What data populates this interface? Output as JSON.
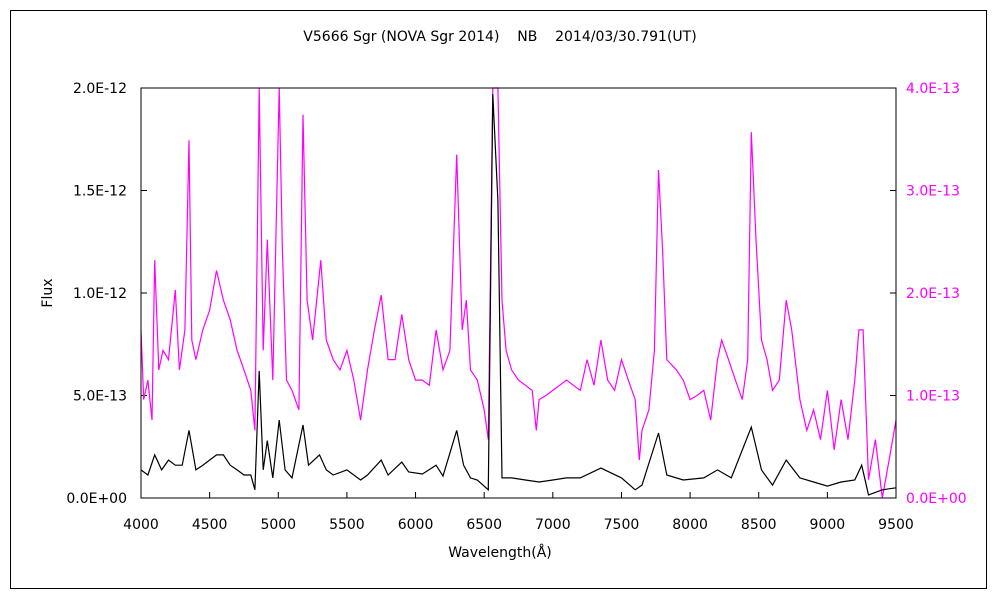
{
  "chart_data": {
    "type": "line",
    "title": "V5666 Sgr (NOVA Sgr 2014)    NB    2014/03/30.791(UT)",
    "xlabel": "Wavelength(Å)",
    "ylabel": "Flux",
    "xlim": [
      4000,
      9500
    ],
    "ylim_left": [
      0,
      2e-12
    ],
    "ylim_right": [
      0,
      4e-13
    ],
    "x_ticks": [
      "4000",
      "4500",
      "5000",
      "5500",
      "6000",
      "6500",
      "7000",
      "7500",
      "8000",
      "8500",
      "9000",
      "9500"
    ],
    "y_ticks_left": [
      "0.0E+00",
      "5.0E-13",
      "1.0E-12",
      "1.5E-12",
      "2.0E-12"
    ],
    "y_ticks_right": [
      "0.0E+00",
      "1.0E-13",
      "2.0E-13",
      "3.0E-13",
      "4.0E-13"
    ],
    "grid": false,
    "colors": {
      "left_series": "#000000",
      "right_series": "#ff00ff",
      "right_axis_labels": "#ff00ff"
    },
    "series": [
      {
        "axis": "left",
        "color": "#000000",
        "points": [
          [
            4000,
            1.37e-13
          ],
          [
            4050,
            1.12e-13
          ],
          [
            4100,
            2.1e-13
          ],
          [
            4150,
            1.37e-13
          ],
          [
            4200,
            1.85e-13
          ],
          [
            4250,
            1.6e-13
          ],
          [
            4300,
            1.6e-13
          ],
          [
            4350,
            3.3e-13
          ],
          [
            4400,
            1.37e-13
          ],
          [
            4450,
            1.6e-13
          ],
          [
            4500,
            1.85e-13
          ],
          [
            4550,
            2.1e-13
          ],
          [
            4600,
            2.1e-13
          ],
          [
            4650,
            1.6e-13
          ],
          [
            4700,
            1.37e-13
          ],
          [
            4750,
            1.12e-13
          ],
          [
            4800,
            1.12e-13
          ],
          [
            4830,
            4e-14
          ],
          [
            4861,
            6.2e-13
          ],
          [
            4890,
            1.37e-13
          ],
          [
            4920,
            2.8e-13
          ],
          [
            4960,
            9.8e-14
          ],
          [
            5007,
            3.8e-13
          ],
          [
            5050,
            1.37e-13
          ],
          [
            5100,
            9.8e-14
          ],
          [
            5180,
            3.56e-13
          ],
          [
            5220,
            1.6e-13
          ],
          [
            5300,
            2.1e-13
          ],
          [
            5350,
            1.37e-13
          ],
          [
            5400,
            1.12e-13
          ],
          [
            5500,
            1.37e-13
          ],
          [
            5600,
            8.8e-14
          ],
          [
            5650,
            1.12e-13
          ],
          [
            5750,
            1.85e-13
          ],
          [
            5800,
            1.12e-13
          ],
          [
            5900,
            1.75e-13
          ],
          [
            5950,
            1.27e-13
          ],
          [
            6050,
            1.17e-13
          ],
          [
            6150,
            1.6e-13
          ],
          [
            6200,
            1.07e-13
          ],
          [
            6300,
            3.3e-13
          ],
          [
            6350,
            1.6e-13
          ],
          [
            6400,
            9.8e-14
          ],
          [
            6450,
            8.8e-14
          ],
          [
            6530,
            4e-14
          ],
          [
            6563,
            1.97e-12
          ],
          [
            6600,
            1.45e-12
          ],
          [
            6630,
            9.8e-14
          ],
          [
            6700,
            9.8e-14
          ],
          [
            6800,
            8.8e-14
          ],
          [
            6900,
            7.8e-14
          ],
          [
            7000,
            8.8e-14
          ],
          [
            7100,
            9.8e-14
          ],
          [
            7200,
            9.8e-14
          ],
          [
            7350,
            1.46e-13
          ],
          [
            7500,
            9.8e-14
          ],
          [
            7600,
            4e-14
          ],
          [
            7650,
            6.3e-14
          ],
          [
            7770,
            3.17e-13
          ],
          [
            7830,
            1.12e-13
          ],
          [
            7950,
            8.8e-14
          ],
          [
            8100,
            9.8e-14
          ],
          [
            8200,
            1.37e-13
          ],
          [
            8300,
            9.8e-14
          ],
          [
            8446,
            3.46e-13
          ],
          [
            8520,
            1.37e-13
          ],
          [
            8600,
            6.3e-14
          ],
          [
            8700,
            1.85e-13
          ],
          [
            8800,
            9.8e-14
          ],
          [
            8900,
            7.8e-14
          ],
          [
            9000,
            5.8e-14
          ],
          [
            9100,
            7.8e-14
          ],
          [
            9200,
            8.8e-14
          ],
          [
            9250,
            1.6e-13
          ],
          [
            9300,
            1.5e-14
          ],
          [
            9400,
            4e-14
          ],
          [
            9500,
            5e-14
          ]
        ]
      },
      {
        "axis": "right",
        "color": "#ff00ff",
        "points": [
          [
            4000,
            1.64e-13
          ],
          [
            4020,
            9.6e-14
          ],
          [
            4050,
            1.15e-13
          ],
          [
            4080,
            7.6e-14
          ],
          [
            4100,
            2.32e-13
          ],
          [
            4130,
            1.25e-13
          ],
          [
            4160,
            1.44e-13
          ],
          [
            4200,
            1.35e-13
          ],
          [
            4250,
            2.03e-13
          ],
          [
            4280,
            1.25e-13
          ],
          [
            4320,
            1.64e-13
          ],
          [
            4350,
            3.49e-13
          ],
          [
            4370,
            1.54e-13
          ],
          [
            4400,
            1.35e-13
          ],
          [
            4450,
            1.64e-13
          ],
          [
            4500,
            1.83e-13
          ],
          [
            4550,
            2.22e-13
          ],
          [
            4600,
            1.93e-13
          ],
          [
            4650,
            1.74e-13
          ],
          [
            4700,
            1.44e-13
          ],
          [
            4750,
            1.25e-13
          ],
          [
            4800,
            1.05e-13
          ],
          [
            4830,
            6.6e-14
          ],
          [
            4861,
            4e-13
          ],
          [
            4890,
            1.44e-13
          ],
          [
            4920,
            2.52e-13
          ],
          [
            4960,
            1.15e-13
          ],
          [
            5007,
            4e-13
          ],
          [
            5030,
            2.42e-13
          ],
          [
            5060,
            1.15e-13
          ],
          [
            5100,
            1.05e-13
          ],
          [
            5150,
            8.6e-14
          ],
          [
            5180,
            3.74e-13
          ],
          [
            5210,
            1.93e-13
          ],
          [
            5250,
            1.54e-13
          ],
          [
            5280,
            1.93e-13
          ],
          [
            5310,
            2.32e-13
          ],
          [
            5350,
            1.54e-13
          ],
          [
            5400,
            1.35e-13
          ],
          [
            5450,
            1.25e-13
          ],
          [
            5500,
            1.44e-13
          ],
          [
            5550,
            1.15e-13
          ],
          [
            5600,
            7.6e-14
          ],
          [
            5650,
            1.25e-13
          ],
          [
            5700,
            1.64e-13
          ],
          [
            5750,
            1.98e-13
          ],
          [
            5800,
            1.35e-13
          ],
          [
            5850,
            1.35e-13
          ],
          [
            5900,
            1.79e-13
          ],
          [
            5950,
            1.35e-13
          ],
          [
            6000,
            1.15e-13
          ],
          [
            6050,
            1.15e-13
          ],
          [
            6100,
            1.1e-13
          ],
          [
            6150,
            1.64e-13
          ],
          [
            6200,
            1.25e-13
          ],
          [
            6250,
            1.44e-13
          ],
          [
            6300,
            3.35e-13
          ],
          [
            6340,
            1.64e-13
          ],
          [
            6370,
            1.93e-13
          ],
          [
            6400,
            1.25e-13
          ],
          [
            6450,
            1.15e-13
          ],
          [
            6500,
            8.6e-14
          ],
          [
            6530,
            5.7e-14
          ],
          [
            6563,
            4e-13
          ],
          [
            6600,
            4e-13
          ],
          [
            6630,
            1.93e-13
          ],
          [
            6660,
            1.44e-13
          ],
          [
            6700,
            1.25e-13
          ],
          [
            6750,
            1.15e-13
          ],
          [
            6800,
            1.1e-13
          ],
          [
            6850,
            1.05e-13
          ],
          [
            6880,
            6.6e-14
          ],
          [
            6900,
            9.6e-14
          ],
          [
            6950,
            1e-13
          ],
          [
            7000,
            1.05e-13
          ],
          [
            7050,
            1.1e-13
          ],
          [
            7100,
            1.15e-13
          ],
          [
            7150,
            1.1e-13
          ],
          [
            7200,
            1.05e-13
          ],
          [
            7250,
            1.35e-13
          ],
          [
            7300,
            1.1e-13
          ],
          [
            7350,
            1.54e-13
          ],
          [
            7400,
            1.15e-13
          ],
          [
            7450,
            1.05e-13
          ],
          [
            7500,
            1.35e-13
          ],
          [
            7550,
            1.15e-13
          ],
          [
            7600,
            9.6e-14
          ],
          [
            7630,
            3.7e-14
          ],
          [
            7650,
            6.6e-14
          ],
          [
            7700,
            8.6e-14
          ],
          [
            7740,
            1.44e-13
          ],
          [
            7770,
            3.2e-13
          ],
          [
            7800,
            2.42e-13
          ],
          [
            7830,
            1.35e-13
          ],
          [
            7900,
            1.25e-13
          ],
          [
            7950,
            1.15e-13
          ],
          [
            8000,
            9.6e-14
          ],
          [
            8050,
            1e-13
          ],
          [
            8100,
            1.05e-13
          ],
          [
            8150,
            7.6e-14
          ],
          [
            8200,
            1.35e-13
          ],
          [
            8230,
            1.54e-13
          ],
          [
            8280,
            1.35e-13
          ],
          [
            8330,
            1.15e-13
          ],
          [
            8380,
            9.6e-14
          ],
          [
            8420,
            1.35e-13
          ],
          [
            8446,
            3.57e-13
          ],
          [
            8480,
            2.52e-13
          ],
          [
            8520,
            1.54e-13
          ],
          [
            8560,
            1.35e-13
          ],
          [
            8600,
            1.05e-13
          ],
          [
            8650,
            1.15e-13
          ],
          [
            8700,
            1.93e-13
          ],
          [
            8740,
            1.64e-13
          ],
          [
            8800,
            9.6e-14
          ],
          [
            8850,
            6.6e-14
          ],
          [
            8900,
            8.6e-14
          ],
          [
            8950,
            5.7e-14
          ],
          [
            9000,
            1.05e-13
          ],
          [
            9050,
            4.7e-14
          ],
          [
            9100,
            9.6e-14
          ],
          [
            9150,
            5.7e-14
          ],
          [
            9200,
            1.15e-13
          ],
          [
            9230,
            1.64e-13
          ],
          [
            9260,
            1.64e-13
          ],
          [
            9300,
            1.8e-14
          ],
          [
            9350,
            5.7e-14
          ],
          [
            9400,
            0.0
          ],
          [
            9450,
            3.7e-14
          ],
          [
            9500,
            7.6e-14
          ]
        ]
      }
    ]
  }
}
